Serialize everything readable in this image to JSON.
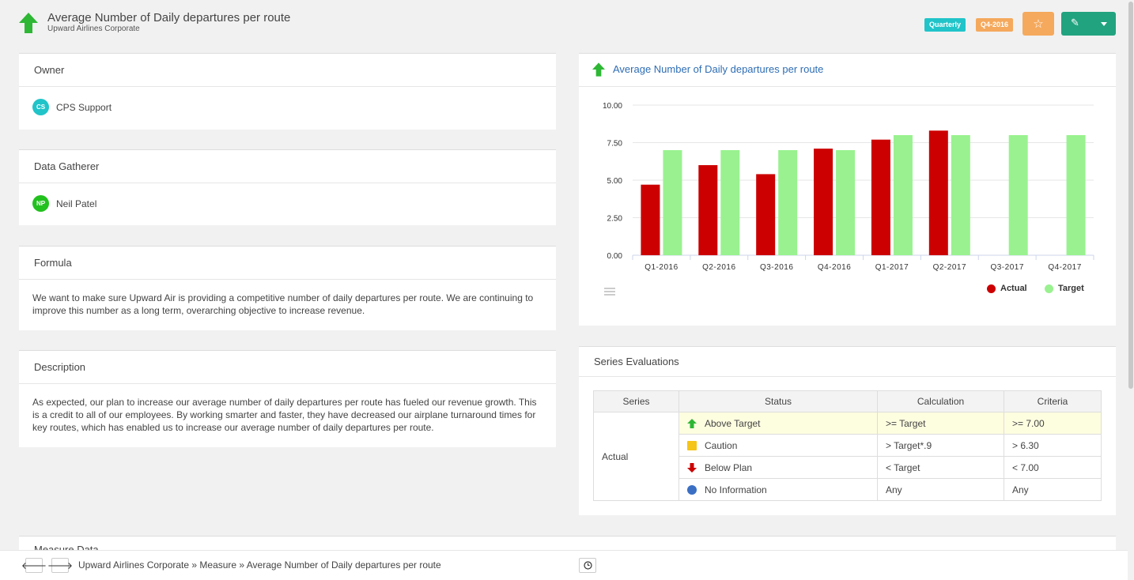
{
  "header": {
    "title": "Average Number of Daily departures per route",
    "subtitle": "Upward Airlines Corporate",
    "badge_period_type": "Quarterly",
    "badge_period": "Q4-2016",
    "icons": {
      "trend": "up-arrow-icon",
      "star": "star-icon",
      "edit": "pencil-icon"
    },
    "colors": {
      "up": "#2db734",
      "quarterly": "#20c4c9",
      "period": "#f5a95c",
      "edit": "#21a37f"
    }
  },
  "owner": {
    "heading": "Owner",
    "initials": "CS",
    "name": "CPS Support",
    "avatar_color": "#20c4c9"
  },
  "gatherer": {
    "heading": "Data Gatherer",
    "initials": "NP",
    "name": "Neil Patel",
    "avatar_color": "#22c11e"
  },
  "formula": {
    "heading": "Formula",
    "text": "We want to make sure Upward Air is providing a competitive number of daily departures per route. We are continuing to improve this number as a long term, overarching objective to increase revenue."
  },
  "description": {
    "heading": "Description",
    "text": "As expected, our plan to increase our average number of daily departures per route has fueled our revenue growth.  This is a credit to all of our employees.  By working smarter and faster, they have decreased our airplane turnaround times for key routes, which has enabled us to increase our average number of daily departures per route."
  },
  "chart_panel": {
    "title": "Average Number of Daily departures per route"
  },
  "chart_data": {
    "type": "bar",
    "categories": [
      "Q1-2016",
      "Q2-2016",
      "Q3-2016",
      "Q4-2016",
      "Q1-2017",
      "Q2-2017",
      "Q3-2017",
      "Q4-2017"
    ],
    "series": [
      {
        "name": "Actual",
        "color": "#cc0000",
        "values": [
          4.7,
          6.0,
          5.4,
          7.1,
          7.7,
          8.3,
          null,
          null
        ]
      },
      {
        "name": "Target",
        "color": "#99f28f",
        "values": [
          7.0,
          7.0,
          7.0,
          7.0,
          8.0,
          8.0,
          8.0,
          8.0
        ]
      }
    ],
    "yticks": [
      "0.00",
      "2.50",
      "5.00",
      "7.50",
      "10.00"
    ],
    "ylim": [
      0,
      10
    ],
    "grid": true,
    "legend": "bottom-right"
  },
  "evaluations": {
    "heading": "Series Evaluations",
    "columns": [
      "Series",
      "Status",
      "Calculation",
      "Criteria"
    ],
    "series_name": "Actual",
    "rows": [
      {
        "status": "Above Target",
        "calculation": ">= Target",
        "criteria": ">= 7.00",
        "icon": "green-up-arrow-icon",
        "color": "#2db734"
      },
      {
        "status": "Caution",
        "calculation": "> Target*.9",
        "criteria": "> 6.30",
        "icon": "yellow-square-icon",
        "color": "#f5c518"
      },
      {
        "status": "Below Plan",
        "calculation": "< Target",
        "criteria": "< 7.00",
        "icon": "red-down-arrow-icon",
        "color": "#cc0000"
      },
      {
        "status": "No Information",
        "calculation": "Any",
        "criteria": "Any",
        "icon": "blue-circle-icon",
        "color": "#3a6fc4"
      }
    ]
  },
  "bottom_section_heading": "Measure Data",
  "footer": {
    "breadcrumb": "Upward Airlines Corporate » Measure » Average Number of Daily departures per route"
  }
}
